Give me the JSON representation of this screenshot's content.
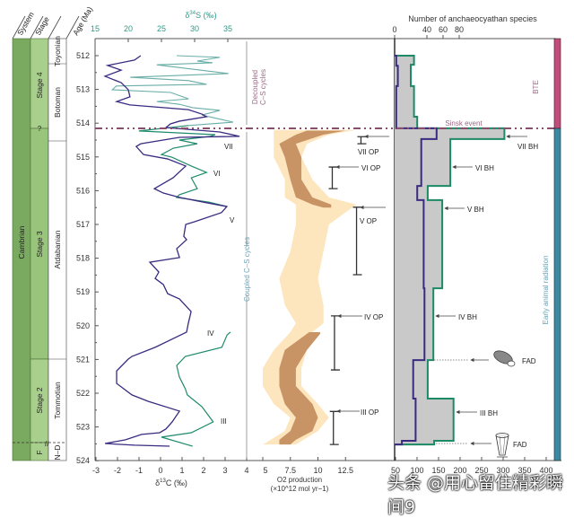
{
  "strata": {
    "headers": {
      "system": "System",
      "stage": "Stage",
      "age": "Age (Ma)"
    },
    "system": "Cambrian",
    "stages": [
      "Stage 4",
      "?",
      "Stage 3",
      "Stage 2",
      "F"
    ],
    "series": [
      "Toyonian",
      "Botoman",
      "Atdabanian",
      "Tommotian",
      "N–D"
    ]
  },
  "annotations": {
    "decoupled": [
      "Decoupled",
      "C–S cycles"
    ],
    "coupled": "Coupled C–S cycles",
    "sinsk": "Sinsk event",
    "bte": "BTE",
    "early_radiation": "Early animal radiation",
    "cycles": [
      "VII",
      "VI",
      "V",
      "IV",
      "III"
    ],
    "op_labels": [
      "VII OP",
      "VI OP",
      "V OP",
      "IV OP",
      "III OP"
    ],
    "bh_labels": [
      "VII BH",
      "VI BH",
      "V BH",
      "IV BH",
      "III BH"
    ],
    "fad": [
      "FAD",
      "FAD"
    ]
  },
  "colors": {
    "carbon": "#3a2a80",
    "sulfur_upper": "#6aaea8",
    "sulfur_lower": "#1f8a6c",
    "o2_pale": "#fde6bd",
    "o2_dark": "#c99465",
    "species_fill": "#c9c9c9",
    "species_total": "#1c8a64",
    "species_other": "#3a2a80",
    "sinsk": "#8b4f6e",
    "bte_bar": "#c24c7a",
    "radiation_bar": "#3b8aa2"
  },
  "chart_data": {
    "type": "line",
    "age_axis": {
      "label": "Age (Ma)",
      "range": [
        512,
        524
      ],
      "ticks": [
        512,
        513,
        514,
        515,
        516,
        517,
        518,
        519,
        520,
        521,
        522,
        523,
        524
      ]
    },
    "carbon_sulfur": {
      "x_bottom": {
        "label": "δ13C (‰)",
        "label_main": "δ",
        "label_sup": "13",
        "label_rest": "C (‰)",
        "range": [
          -3,
          4
        ],
        "ticks": [
          -3,
          -2,
          -1,
          0,
          1,
          2,
          3,
          4
        ]
      },
      "x_top": {
        "label": "δ34S (‰)",
        "label_main": "δ",
        "label_sup": "34",
        "label_rest": "S (‰)",
        "range": [
          15,
          37.8
        ],
        "ticks": [
          15,
          20,
          25,
          30,
          35
        ]
      },
      "series": [
        {
          "name": "δ13C",
          "points": [
            [
              512.0,
              -0.92
            ],
            [
              512.13,
              -1.21
            ],
            [
              512.29,
              -2.46
            ],
            [
              512.43,
              -1.83
            ],
            [
              512.61,
              -2.58
            ],
            [
              512.8,
              -1.83
            ],
            [
              513.01,
              -1.5
            ],
            [
              513.22,
              -1.42
            ],
            [
              513.36,
              -2.04
            ],
            [
              513.46,
              -1.42
            ],
            [
              513.6,
              1.29
            ],
            [
              513.73,
              1.92
            ],
            [
              513.81,
              2.13
            ],
            [
              513.94,
              0.88
            ],
            [
              514.02,
              0.46
            ],
            [
              514.13,
              0.25
            ],
            [
              514.26,
              2.75
            ],
            [
              514.39,
              3.67
            ],
            [
              514.42,
              0.88
            ],
            [
              514.61,
              -0.92
            ],
            [
              514.69,
              -1.13
            ],
            [
              514.93,
              -0.79
            ],
            [
              515.06,
              0.33
            ],
            [
              515.27,
              1.17
            ],
            [
              515.62,
              0.58
            ],
            [
              515.94,
              -0.29
            ],
            [
              516.07,
              0.13
            ],
            [
              516.2,
              0.88
            ],
            [
              516.34,
              2.0
            ],
            [
              516.47,
              3.08
            ],
            [
              516.65,
              2.83
            ],
            [
              516.92,
              1.58
            ],
            [
              517.0,
              1.17
            ],
            [
              517.35,
              1.08
            ],
            [
              517.45,
              1.21
            ],
            [
              517.72,
              0.75
            ],
            [
              517.98,
              0.88
            ],
            [
              518.12,
              -0.5
            ],
            [
              518.41,
              -0.08
            ],
            [
              518.6,
              -0.25
            ],
            [
              518.78,
              0.13
            ],
            [
              519.05,
              0.33
            ],
            [
              519.21,
              0.88
            ],
            [
              519.58,
              1.42
            ],
            [
              519.93,
              1.29
            ],
            [
              520.19,
              1.21
            ],
            [
              520.64,
              -0.25
            ],
            [
              520.91,
              -1.33
            ],
            [
              520.99,
              -1.5
            ],
            [
              521.34,
              -2.04
            ],
            [
              521.71,
              -2.04
            ],
            [
              522.05,
              -1.33
            ],
            [
              522.24,
              -0.58
            ],
            [
              522.53,
              0.88
            ],
            [
              522.85,
              0.54
            ],
            [
              523.06,
              0.25
            ],
            [
              523.17,
              -0.04
            ],
            [
              523.22,
              -0.88
            ],
            [
              523.38,
              -1.63
            ],
            [
              523.49,
              -2.58
            ],
            [
              523.54,
              -1.21
            ],
            [
              523.57,
              0.42
            ]
          ]
        },
        {
          "name": "δ34S (Botoman)",
          "points": [
            [
              512.0,
              27.3
            ],
            [
              512.05,
              33.8
            ],
            [
              512.16,
              30.4
            ],
            [
              512.21,
              32.7
            ],
            [
              512.27,
              24.3
            ],
            [
              512.53,
              35.1
            ],
            [
              512.64,
              20.3
            ],
            [
              512.74,
              29.1
            ],
            [
              512.85,
              31.8
            ],
            [
              512.9,
              18.2
            ],
            [
              513.01,
              17.6
            ],
            [
              513.09,
              26.4
            ],
            [
              513.28,
              29.1
            ],
            [
              513.36,
              24.3
            ],
            [
              513.44,
              27.7
            ],
            [
              513.54,
              29.7
            ],
            [
              513.62,
              33.8
            ],
            [
              513.76,
              31.1
            ],
            [
              513.97,
              35.8
            ],
            [
              514.07,
              29.1
            ]
          ]
        },
        {
          "name": "δ34S",
          "points": [
            [
              514.07,
              29.1
            ],
            [
              514.23,
              21.6
            ],
            [
              514.34,
              33.1
            ],
            [
              514.39,
              32.4
            ],
            [
              514.5,
              27.7
            ],
            [
              514.61,
              30.4
            ],
            [
              514.74,
              26.8
            ],
            [
              514.93,
              25.0
            ],
            [
              515.01,
              26.6
            ],
            [
              515.27,
              29.5
            ],
            [
              515.46,
              31.8
            ],
            [
              515.62,
              29.5
            ],
            [
              515.8,
              30.0
            ],
            [
              515.94,
              30.4
            ],
            [
              516.12,
              27.7
            ],
            [
              516.2,
              27.3
            ],
            [
              516.34,
              32.2
            ],
            [
              516.47,
              34.9
            ]
          ]
        },
        {
          "name": "δ34S (Tommotian)",
          "points": [
            [
              520.19,
              35.4
            ],
            [
              520.27,
              34.9
            ],
            [
              520.64,
              34.1
            ],
            [
              520.91,
              28.6
            ],
            [
              521.18,
              27.3
            ],
            [
              521.52,
              27.7
            ],
            [
              521.87,
              28.6
            ],
            [
              522.05,
              28.9
            ],
            [
              522.4,
              31.1
            ],
            [
              522.85,
              32.8
            ],
            [
              523.17,
              29.5
            ],
            [
              523.3,
              25.0
            ],
            [
              523.57,
              29.7
            ]
          ]
        }
      ]
    },
    "o2_production": {
      "type": "area",
      "x_axis": {
        "label_line1": "O2 production",
        "label_line2": "(×10^12 mol yr−1)",
        "ticks": [
          5,
          7.5,
          10,
          12.5
        ],
        "range": [
          3.5,
          14
        ]
      },
      "pale_band": [
        [
          514.2,
          6,
          13.5
        ],
        [
          514.34,
          6,
          11
        ],
        [
          514.61,
          6,
          9
        ],
        [
          515.01,
          6,
          8.5
        ],
        [
          515.67,
          7,
          9.5
        ],
        [
          516.2,
          7,
          11
        ],
        [
          516.41,
          8,
          13.5
        ],
        [
          517.0,
          8,
          11
        ],
        [
          517.8,
          7.5,
          10.5
        ],
        [
          518.6,
          6.5,
          10
        ],
        [
          519.39,
          7,
          10.5
        ],
        [
          519.93,
          8,
          10.5
        ],
        [
          520.19,
          7.5,
          9.5
        ],
        [
          520.72,
          6,
          9
        ],
        [
          521.26,
          5,
          8.5
        ],
        [
          521.79,
          5,
          8.5
        ],
        [
          522.32,
          6,
          10
        ],
        [
          522.72,
          7.5,
          11
        ],
        [
          523.12,
          7,
          10
        ],
        [
          523.52,
          5,
          8
        ]
      ],
      "dark_bands": [
        [
          [
            514.22,
            9,
            12.5
          ],
          [
            514.34,
            8,
            10.5
          ],
          [
            514.61,
            6.5,
            8
          ],
          [
            515.01,
            7,
            8.5
          ],
          [
            515.67,
            7.5,
            8.5
          ],
          [
            516.2,
            8,
            9.5
          ],
          [
            516.41,
            9.5,
            11.2
          ],
          [
            516.5,
            10.5,
            11.2
          ]
        ],
        [
          [
            520.19,
            9.2,
            10.2
          ],
          [
            520.24,
            9,
            10.2
          ],
          [
            520.72,
            7,
            9
          ],
          [
            521.26,
            6.5,
            8
          ],
          [
            521.79,
            6.5,
            8
          ],
          [
            522.32,
            7,
            9.5
          ],
          [
            522.72,
            8,
            10
          ],
          [
            523.12,
            7.5,
            9.5
          ],
          [
            523.38,
            6.5,
            8
          ],
          [
            523.52,
            6.5,
            7.5
          ]
        ]
      ],
      "op_intervals": [
        [
          514.4,
          514.61,
          13.9
        ],
        [
          515.3,
          515.94,
          11.3
        ],
        [
          516.49,
          518.49,
          13.5
        ],
        [
          519.71,
          521.31,
          11.5
        ],
        [
          522.54,
          523.52,
          11.4
        ]
      ]
    },
    "species": {
      "type": "bar",
      "x_top": {
        "label": "Number of anchaeocyathan species",
        "ticks": [
          0,
          40,
          60,
          80
        ]
      },
      "x_bottom": {
        "ticks": [
          50,
          100,
          150,
          200,
          250,
          300,
          350,
          400
        ]
      },
      "total_steps": [
        [
          512.0,
          512.27,
          24
        ],
        [
          512.27,
          512.9,
          20
        ],
        [
          512.9,
          513.81,
          24
        ],
        [
          513.81,
          514.15,
          28
        ],
        [
          514.15,
          514.47,
          136
        ],
        [
          514.47,
          515.86,
          69
        ],
        [
          515.86,
          516.28,
          41
        ],
        [
          516.28,
          518.89,
          59
        ],
        [
          518.89,
          521.02,
          48
        ],
        [
          521.02,
          522.16,
          41
        ],
        [
          522.16,
          523.41,
          73
        ],
        [
          523.41,
          523.52,
          49
        ]
      ],
      "other_steps": [
        [
          512.0,
          512.3,
          2
        ],
        [
          512.3,
          512.9,
          4
        ],
        [
          512.9,
          514.15,
          2
        ],
        [
          514.15,
          514.47,
          52
        ],
        [
          514.47,
          515.86,
          33
        ],
        [
          515.86,
          516.28,
          28
        ],
        [
          516.28,
          518.89,
          36
        ],
        [
          518.89,
          521.02,
          37
        ],
        [
          521.02,
          522.16,
          23
        ],
        [
          522.16,
          523.41,
          26
        ],
        [
          523.41,
          523.52,
          9
        ]
      ]
    }
  },
  "watermark": "头条 @用心留住精彩瞬间9"
}
